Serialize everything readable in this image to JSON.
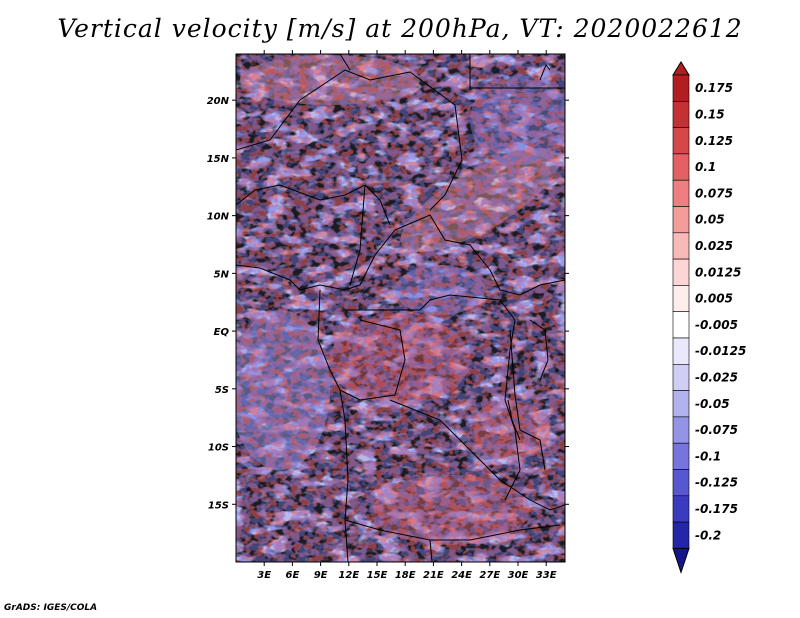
{
  "title": "Vertical velocity [m/s] at 200hPa, VT: 2020022612",
  "credit": "GrADS: IGES/COLA",
  "chart_data": {
    "type": "heatmap",
    "variable": "Vertical velocity",
    "units": "m/s",
    "level": "200hPa",
    "valid_time": "2020022612",
    "lon_range": [
      0,
      35
    ],
    "lat_range": [
      -20,
      24
    ],
    "x_ticks": [
      "3E",
      "6E",
      "9E",
      "12E",
      "15E",
      "18E",
      "21E",
      "24E",
      "27E",
      "30E",
      "33E"
    ],
    "x_tick_values": [
      3,
      6,
      9,
      12,
      15,
      18,
      21,
      24,
      27,
      30,
      33
    ],
    "y_ticks": [
      "20N",
      "15N",
      "10N",
      "5N",
      "EQ",
      "5S",
      "10S",
      "15S"
    ],
    "y_tick_values": [
      20,
      15,
      10,
      5,
      0,
      -5,
      -10,
      -15
    ],
    "colorbar": {
      "labels": [
        "0.175",
        "0.15",
        "0.125",
        "0.1",
        "0.075",
        "0.05",
        "0.025",
        "0.0125",
        "0.005",
        "-0.005",
        "-0.0125",
        "-0.025",
        "-0.05",
        "-0.075",
        "-0.1",
        "-0.125",
        "-0.175",
        "-0.2"
      ],
      "colors": [
        "#b01e22",
        "#c43134",
        "#d6474a",
        "#e46063",
        "#ee7e7f",
        "#f49c9b",
        "#f8bab8",
        "#fbd6d4",
        "#fdeeec",
        "#ffffff",
        "#e9e9fb",
        "#cfcff6",
        "#b2b2ef",
        "#9494e6",
        "#7575dc",
        "#5757d0",
        "#3b3bc0",
        "#2525a8",
        "#16168c"
      ]
    }
  }
}
